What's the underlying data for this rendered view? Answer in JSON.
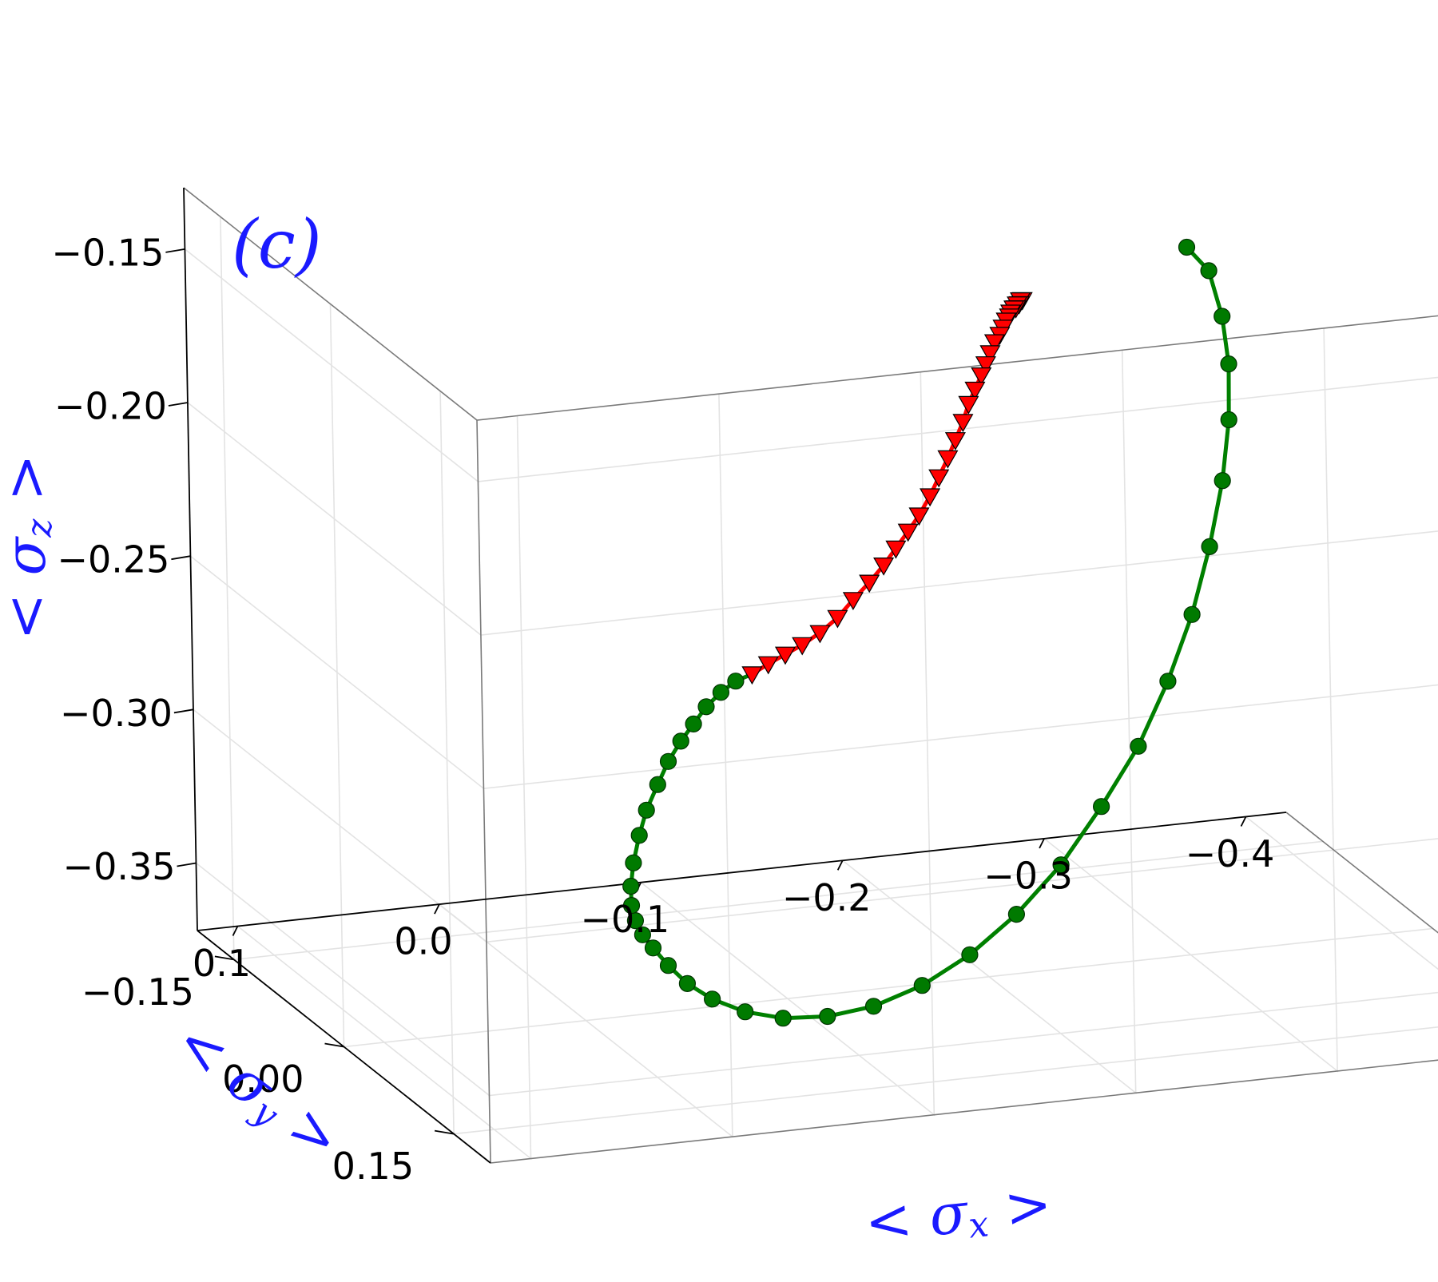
{
  "chart_data": {
    "type": "scatter",
    "panel_label": "(c)",
    "projection": "3d",
    "grid": true,
    "axes": {
      "x": {
        "label": "< σx >",
        "ticks": [
          0.1,
          0.0,
          -0.1,
          -0.2,
          -0.3,
          -0.4
        ],
        "tick_labels": [
          "0.1",
          "0.0",
          "−0.1",
          "−0.2",
          "−0.3",
          "−0.4"
        ],
        "range": [
          0.12,
          -0.42
        ]
      },
      "y": {
        "label": "< σy >",
        "ticks": [
          -0.15,
          0.0,
          0.15
        ],
        "tick_labels": [
          "−0.15",
          "0.00",
          "0.15"
        ],
        "range": [
          -0.2,
          0.2
        ]
      },
      "z": {
        "label": "< σz >",
        "ticks": [
          -0.15,
          -0.2,
          -0.25,
          -0.3,
          -0.35
        ],
        "tick_labels": [
          "−0.15",
          "−0.20",
          "−0.25",
          "−0.30",
          "−0.35"
        ],
        "range": [
          -0.372,
          -0.13
        ]
      }
    },
    "series": [
      {
        "marker": "circle",
        "color": "#007a00",
        "line_color": "#008000",
        "points": [
          [
            -0.358,
            -0.15,
            -0.174
          ],
          [
            -0.368,
            -0.148,
            -0.182
          ],
          [
            -0.372,
            -0.142,
            -0.196
          ],
          [
            -0.372,
            -0.134,
            -0.21
          ],
          [
            -0.368,
            -0.124,
            -0.226
          ],
          [
            -0.36,
            -0.112,
            -0.243
          ],
          [
            -0.348,
            -0.098,
            -0.261
          ],
          [
            -0.333,
            -0.082,
            -0.279
          ],
          [
            -0.314,
            -0.064,
            -0.296
          ],
          [
            -0.292,
            -0.045,
            -0.312
          ],
          [
            -0.266,
            -0.025,
            -0.326
          ],
          [
            -0.238,
            -0.004,
            -0.339
          ],
          [
            -0.208,
            0.017,
            -0.349
          ],
          [
            -0.177,
            0.038,
            -0.356
          ],
          [
            -0.146,
            0.058,
            -0.36
          ],
          [
            -0.115,
            0.077,
            -0.361
          ],
          [
            -0.086,
            0.094,
            -0.359
          ],
          [
            -0.059,
            0.108,
            -0.355
          ],
          [
            -0.036,
            0.12,
            -0.349
          ],
          [
            -0.017,
            0.128,
            -0.342
          ],
          [
            -0.003,
            0.133,
            -0.335
          ],
          [
            0.007,
            0.135,
            -0.328
          ],
          [
            0.014,
            0.134,
            -0.322
          ],
          [
            0.018,
            0.131,
            -0.318
          ],
          [
            0.02,
            0.127,
            -0.314
          ],
          [
            0.02,
            0.122,
            -0.31
          ],
          [
            0.018,
            0.116,
            -0.305
          ],
          [
            0.014,
            0.109,
            -0.299
          ],
          [
            0.008,
            0.101,
            -0.292
          ],
          [
            0.001,
            0.092,
            -0.286
          ],
          [
            -0.008,
            0.083,
            -0.28
          ],
          [
            -0.017,
            0.073,
            -0.275
          ],
          [
            -0.027,
            0.063,
            -0.271
          ],
          [
            -0.037,
            0.053,
            -0.268
          ],
          [
            -0.047,
            0.043,
            -0.265
          ],
          [
            -0.058,
            0.033,
            -0.263
          ],
          [
            -0.069,
            0.023,
            -0.262
          ]
        ]
      },
      {
        "marker": "triangle-down",
        "color": "#ff0000",
        "line_color": "#ff0000",
        "points": [
          [
            -0.08,
            0.015,
            -0.262
          ],
          [
            -0.091,
            0.007,
            -0.261
          ],
          [
            -0.102,
            0.0,
            -0.26
          ],
          [
            -0.113,
            -0.007,
            -0.259
          ],
          [
            -0.124,
            -0.013,
            -0.257
          ],
          [
            -0.135,
            -0.019,
            -0.254
          ],
          [
            -0.145,
            -0.025,
            -0.25
          ],
          [
            -0.155,
            -0.03,
            -0.246
          ],
          [
            -0.164,
            -0.035,
            -0.242
          ],
          [
            -0.172,
            -0.04,
            -0.238
          ],
          [
            -0.18,
            -0.045,
            -0.234
          ],
          [
            -0.187,
            -0.049,
            -0.23
          ],
          [
            -0.194,
            -0.053,
            -0.225
          ],
          [
            -0.2,
            -0.057,
            -0.22
          ],
          [
            -0.206,
            -0.061,
            -0.215
          ],
          [
            -0.211,
            -0.064,
            -0.21
          ],
          [
            -0.216,
            -0.067,
            -0.205
          ],
          [
            -0.22,
            -0.07,
            -0.2
          ],
          [
            -0.224,
            -0.072,
            -0.196
          ],
          [
            -0.228,
            -0.074,
            -0.192
          ],
          [
            -0.231,
            -0.076,
            -0.189
          ],
          [
            -0.234,
            -0.078,
            -0.186
          ],
          [
            -0.237,
            -0.08,
            -0.183
          ],
          [
            -0.24,
            -0.081,
            -0.181
          ],
          [
            -0.242,
            -0.082,
            -0.179
          ],
          [
            -0.244,
            -0.083,
            -0.177
          ],
          [
            -0.246,
            -0.084,
            -0.176
          ],
          [
            -0.247,
            -0.085,
            -0.175
          ],
          [
            -0.249,
            -0.086,
            -0.174
          ],
          [
            -0.25,
            -0.086,
            -0.174
          ],
          [
            -0.251,
            -0.087,
            -0.173
          ],
          [
            -0.252,
            -0.087,
            -0.173
          ],
          [
            -0.253,
            -0.088,
            -0.172
          ],
          [
            -0.253,
            -0.088,
            -0.172
          ],
          [
            -0.254,
            -0.088,
            -0.172
          ]
        ]
      }
    ]
  }
}
